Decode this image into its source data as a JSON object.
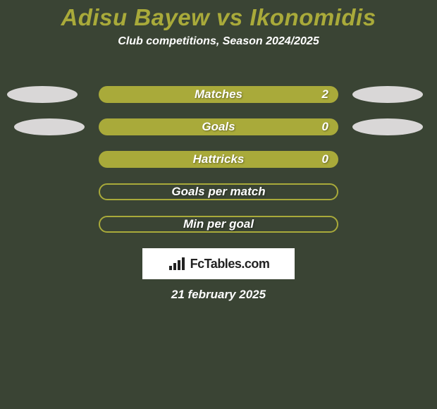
{
  "background_color": "#3a4434",
  "title": {
    "text": "Adisu Bayew vs Ikonomidis",
    "color": "#a9aa3a",
    "fontsize": 33
  },
  "subtitle": {
    "text": "Club competitions, Season 2024/2025",
    "color": "#ffffff",
    "fontsize": 16
  },
  "rows": [
    {
      "label": "Matches",
      "value": "2",
      "center_filled": true,
      "center_fill_color": "#a9aa3a",
      "center_border_color": "#a9aa3a",
      "left_ellipse_color": "#d9d7d7",
      "right_ellipse_color": "#d9d7d7",
      "show_ellipses": true
    },
    {
      "label": "Goals",
      "value": "0",
      "center_filled": true,
      "center_fill_color": "#a9aa3a",
      "center_border_color": "#a9aa3a",
      "left_ellipse_color": "#d9d7d7",
      "right_ellipse_color": "#d9d7d7",
      "show_ellipses": true
    },
    {
      "label": "Hattricks",
      "value": "0",
      "center_filled": true,
      "center_fill_color": "#a9aa3a",
      "center_border_color": "#a9aa3a",
      "show_ellipses": false
    },
    {
      "label": "Goals per match",
      "value": "",
      "center_filled": false,
      "center_fill_color": "transparent",
      "center_border_color": "#a9aa3a",
      "show_ellipses": false
    },
    {
      "label": "Min per goal",
      "value": "",
      "center_filled": false,
      "center_fill_color": "transparent",
      "center_border_color": "#a9aa3a",
      "show_ellipses": false
    }
  ],
  "row_label_color": "#ffffff",
  "row_label_fontsize": 17,
  "row_value_color": "#ffffff",
  "row_value_fontsize": 17,
  "brand": {
    "box_bg": "#ffffff",
    "icon_color": "#222222",
    "text": "FcTables.com",
    "text_color": "#222222",
    "text_fontsize": 18
  },
  "date": {
    "text": "21 february 2025",
    "color": "#ffffff",
    "fontsize": 17
  },
  "left_ellipse_offsets": [
    0,
    10
  ],
  "right_ellipse_offsets": [
    0,
    0
  ]
}
